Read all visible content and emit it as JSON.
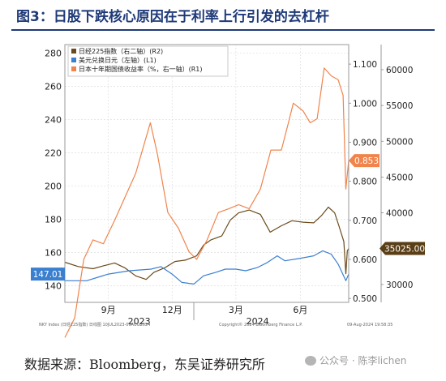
{
  "figure": {
    "title": "图3：日股下跌核心原因在于利率上行引发的去杠杆",
    "source": "数据来源：Bloomberg，东吴证券研究所",
    "watermark": "公众号 · 陈李lichen"
  },
  "chart_data": {
    "type": "line",
    "legend": {
      "placement": "top-left",
      "entries": [
        "日经225指数（右二轴）(R2)",
        "美元兑换日元（左轴）(L1)",
        "日本十年期国债收益率（%，右一轴）(R1)"
      ]
    },
    "x_axis": {
      "range": [
        "2023-07-01",
        "2024-08-09"
      ],
      "tick_labels": [
        "9月",
        "12月",
        "3月",
        "6月"
      ],
      "tick_dates": [
        "2023-09-01",
        "2023-12-01",
        "2024-03-01",
        "2024-06-01"
      ],
      "year_labels": [
        "2023",
        "2024"
      ],
      "year_label_dates": [
        "2023-10-15",
        "2024-04-01"
      ],
      "year_boundary": "2024-01-01"
    },
    "left_axis": {
      "ylim": [
        130,
        285
      ],
      "ticks": [
        140,
        160,
        180,
        200,
        220,
        240,
        260,
        280
      ]
    },
    "right1_axis": {
      "ylim": [
        0.49,
        1.15
      ],
      "ticks": [
        0.5,
        0.6,
        0.7,
        0.8,
        0.9,
        1.0,
        1.1
      ],
      "tick_labels": [
        "0.500",
        "0.600",
        "0.700",
        "0.800",
        "0.900",
        "1.000",
        "1.100"
      ]
    },
    "right2_axis": {
      "ylim": [
        27500,
        63500
      ],
      "ticks": [
        30000,
        35000,
        40000,
        45000,
        50000,
        55000,
        60000
      ]
    },
    "last_value_labels": {
      "usdjpy": "147.01",
      "jgb10y": "0.853",
      "nikkei": "35025.00"
    },
    "colors": {
      "nikkei": "#6b4a1a",
      "usdjpy": "#3a7fd0",
      "jgb10y": "#f0844c",
      "callout_usdjpy": "#3a7fd0",
      "callout_jgb": "#f0844c",
      "callout_nikkei": "#5a3e16"
    },
    "footer": {
      "left": "NKY Index (日经225指数) 日线图 10JUL2023-09AUG2024",
      "center": "Copyright© 2024 Bloomberg Finance L.P.",
      "right": "09-Aug-2024 19:58:35"
    },
    "series": [
      {
        "name": "日经225指数（右二轴）(R2)",
        "axis": "right2",
        "x": [
          "2023-07-01",
          "2023-07-20",
          "2023-08-10",
          "2023-08-25",
          "2023-09-10",
          "2023-09-25",
          "2023-10-10",
          "2023-10-25",
          "2023-11-05",
          "2023-11-20",
          "2023-12-05",
          "2023-12-20",
          "2024-01-05",
          "2024-01-15",
          "2024-01-25",
          "2024-02-10",
          "2024-02-22",
          "2024-03-05",
          "2024-03-20",
          "2024-04-05",
          "2024-04-19",
          "2024-05-05",
          "2024-05-20",
          "2024-06-05",
          "2024-06-20",
          "2024-07-01",
          "2024-07-11",
          "2024-07-20",
          "2024-07-26",
          "2024-08-02",
          "2024-08-05",
          "2024-08-07",
          "2024-08-09"
        ],
        "values": [
          33100,
          32500,
          32200,
          32600,
          33000,
          32300,
          31200,
          30700,
          31700,
          32300,
          33200,
          33400,
          34000,
          35500,
          36200,
          36800,
          39000,
          40000,
          40400,
          39800,
          37300,
          38200,
          38900,
          38700,
          38600,
          39600,
          40800,
          40000,
          38200,
          36000,
          31500,
          34700,
          35025
        ]
      },
      {
        "name": "美元兑换日元（左轴）(L1)",
        "axis": "left1",
        "x": [
          "2023-07-01",
          "2023-08-01",
          "2023-09-01",
          "2023-10-01",
          "2023-11-01",
          "2023-11-15",
          "2023-12-01",
          "2023-12-15",
          "2024-01-01",
          "2024-01-15",
          "2024-02-01",
          "2024-02-15",
          "2024-03-01",
          "2024-03-15",
          "2024-04-01",
          "2024-04-15",
          "2024-04-29",
          "2024-05-10",
          "2024-06-01",
          "2024-06-20",
          "2024-07-03",
          "2024-07-15",
          "2024-07-25",
          "2024-08-05",
          "2024-08-09"
        ],
        "values": [
          143,
          143,
          147,
          149,
          150,
          151.5,
          147,
          142,
          141,
          146,
          148,
          150,
          150,
          149,
          151,
          154,
          158,
          155,
          156.5,
          158,
          161,
          159,
          153,
          143,
          147.01
        ]
      },
      {
        "name": "日本十年期国债收益率（%，右一轴）(R1)",
        "axis": "right1",
        "x": [
          "2023-07-01",
          "2023-07-15",
          "2023-07-28",
          "2023-08-10",
          "2023-08-25",
          "2023-09-10",
          "2023-09-25",
          "2023-10-10",
          "2023-10-31",
          "2023-11-10",
          "2023-11-25",
          "2023-12-10",
          "2023-12-25",
          "2024-01-05",
          "2024-01-20",
          "2024-02-05",
          "2024-02-20",
          "2024-03-05",
          "2024-03-20",
          "2024-04-05",
          "2024-04-20",
          "2024-05-05",
          "2024-05-15",
          "2024-05-22",
          "2024-06-05",
          "2024-06-15",
          "2024-06-25",
          "2024-07-05",
          "2024-07-15",
          "2024-07-25",
          "2024-08-01",
          "2024-08-05",
          "2024-08-09"
        ],
        "values": [
          0.4,
          0.45,
          0.6,
          0.65,
          0.64,
          0.7,
          0.76,
          0.82,
          0.95,
          0.87,
          0.72,
          0.68,
          0.62,
          0.6,
          0.65,
          0.72,
          0.73,
          0.74,
          0.73,
          0.78,
          0.88,
          0.88,
          0.95,
          1.0,
          0.98,
          0.95,
          0.96,
          1.09,
          1.07,
          1.06,
          1.02,
          0.78,
          0.853
        ]
      }
    ]
  }
}
